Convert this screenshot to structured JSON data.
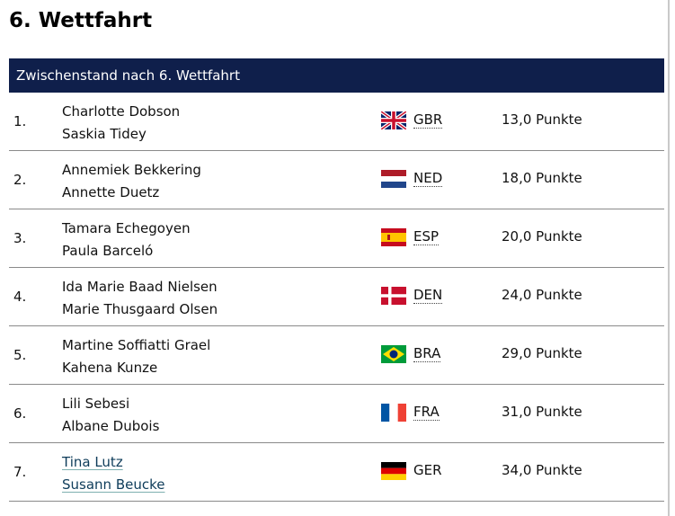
{
  "page": {
    "title": "6. Wettfahrt"
  },
  "table": {
    "header": "Zwischenstand nach 6. Wettfahrt",
    "rows": [
      {
        "rank": "1.",
        "name1": "Charlotte Dobson",
        "name2": "Saskia Tidey",
        "country": "GBR",
        "flag_icon": "uk-flag-icon",
        "points": "13,0 Punkte"
      },
      {
        "rank": "2.",
        "name1": "Annemiek Bekkering",
        "name2": "Annette Duetz",
        "country": "NED",
        "flag_icon": "netherlands-flag-icon",
        "points": "18,0 Punkte"
      },
      {
        "rank": "3.",
        "name1": "Tamara Echegoyen",
        "name2": "Paula Barceló",
        "country": "ESP",
        "flag_icon": "spain-flag-icon",
        "points": "20,0 Punkte"
      },
      {
        "rank": "4.",
        "name1": "Ida Marie Baad Nielsen",
        "name2": "Marie Thusgaard Olsen",
        "country": "DEN",
        "flag_icon": "denmark-flag-icon",
        "points": "24,0 Punkte"
      },
      {
        "rank": "5.",
        "name1": "Martine Soffiatti Grael",
        "name2": "Kahena Kunze",
        "country": "BRA",
        "flag_icon": "brazil-flag-icon",
        "points": "29,0 Punkte"
      },
      {
        "rank": "6.",
        "name1": "Lili Sebesi",
        "name2": "Albane Dubois",
        "country": "FRA",
        "flag_icon": "france-flag-icon",
        "points": "31,0 Punkte"
      },
      {
        "rank": "7.",
        "name1": "Tina Lutz",
        "name2": "Susann Beucke",
        "country": "GER",
        "flag_icon": "germany-flag-icon",
        "points": "34,0 Punkte"
      }
    ]
  },
  "colors": {
    "header_bg": "#0f1f4b",
    "link_underline": "#7fb0b0"
  }
}
